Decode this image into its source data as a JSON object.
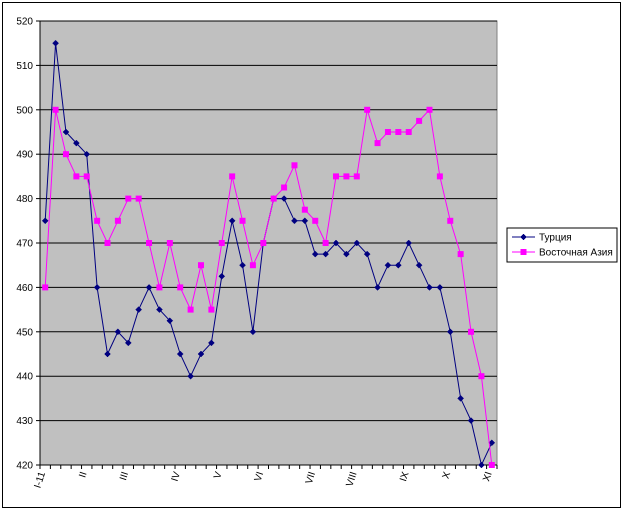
{
  "chart_data": {
    "type": "line",
    "title": "",
    "xlabel": "",
    "ylabel": "",
    "ylim": [
      420,
      520
    ],
    "yticks": [
      420,
      430,
      440,
      450,
      460,
      470,
      480,
      490,
      500,
      510,
      520
    ],
    "grid": "horizontal",
    "legend_position": "right",
    "plot_background": "#c0c0c0",
    "x_tick_labels": [
      {
        "label": "I-11",
        "index": 0
      },
      {
        "label": "II",
        "index": 4
      },
      {
        "label": "III",
        "index": 8
      },
      {
        "label": "IV",
        "index": 13
      },
      {
        "label": "V",
        "index": 17
      },
      {
        "label": "VI",
        "index": 21
      },
      {
        "label": "VII",
        "index": 26
      },
      {
        "label": "VIII",
        "index": 30
      },
      {
        "label": "IX",
        "index": 35
      },
      {
        "label": "X",
        "index": 39
      },
      {
        "label": "XI",
        "index": 43
      }
    ],
    "series": [
      {
        "name": "Турция",
        "color": "#000080",
        "marker": "diamond",
        "values": [
          475,
          515,
          495,
          492.5,
          490,
          460,
          445,
          450,
          447.5,
          455,
          460,
          455,
          452.5,
          445,
          440,
          445,
          447.5,
          462.5,
          475,
          465,
          450,
          470,
          480,
          480,
          475,
          475,
          467.5,
          467.5,
          470,
          467.5,
          470,
          467.5,
          460,
          465,
          465,
          470,
          465,
          460,
          460,
          450,
          435,
          430,
          420,
          425
        ]
      },
      {
        "name": "Восточная Азия",
        "color": "#ff00ff",
        "marker": "square",
        "values": [
          460,
          500,
          490,
          485,
          485,
          475,
          470,
          475,
          480,
          480,
          470,
          460,
          470,
          460,
          455,
          465,
          455,
          470,
          485,
          475,
          465,
          470,
          480,
          482.5,
          487.5,
          477.5,
          475,
          470,
          485,
          485,
          485,
          500,
          492.5,
          495,
          495,
          495,
          497.5,
          500,
          485,
          475,
          467.5,
          450,
          440,
          420
        ]
      }
    ]
  }
}
